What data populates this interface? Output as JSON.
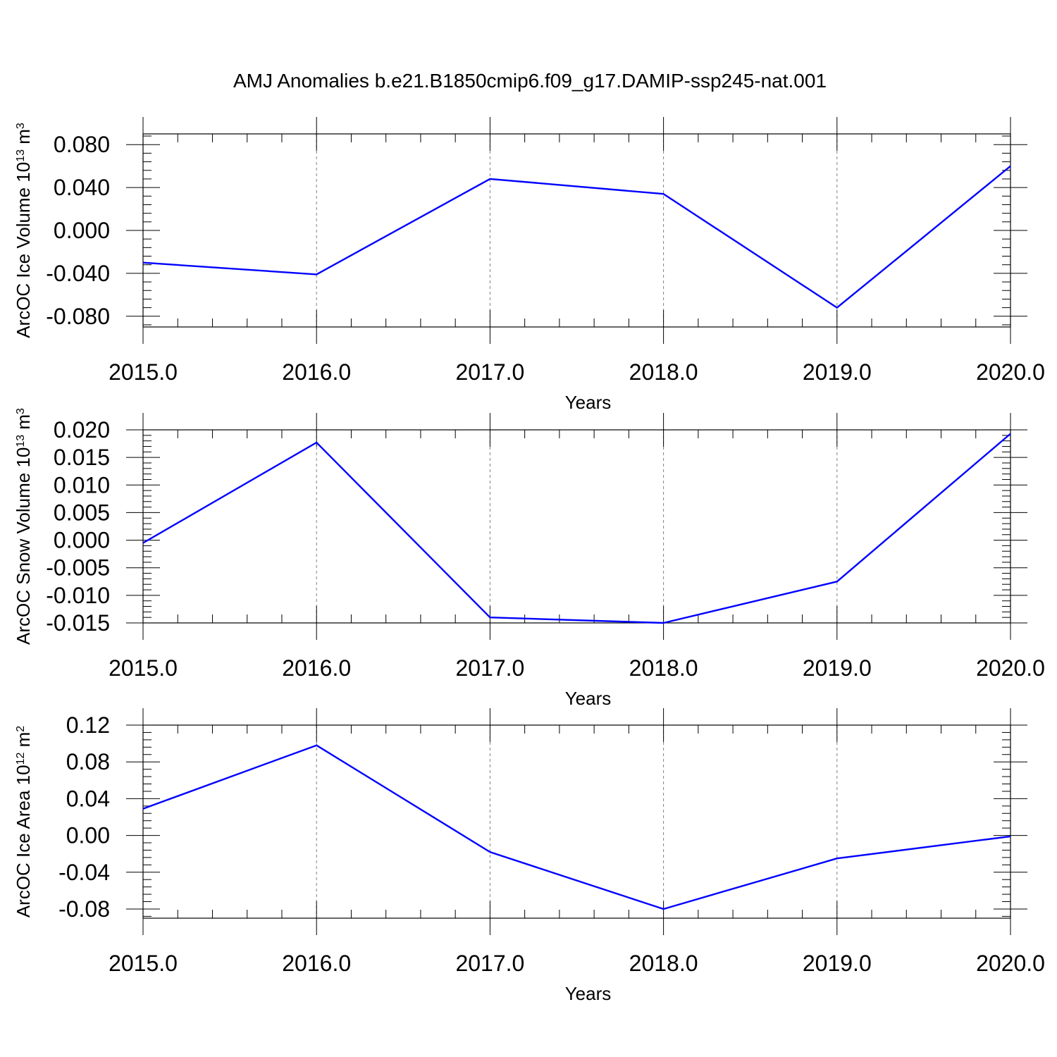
{
  "title": "AMJ Anomalies b.e21.B1850cmip6.f09_g17.DAMIP-ssp245-nat.001",
  "colors": {
    "line": "#0000ff",
    "grid": "#7f7f7f",
    "axis": "#000000"
  },
  "chart_data": [
    {
      "type": "line",
      "ylabel": {
        "text": "ArcOC Ice Volume 10",
        "exp": "13",
        "unit": " m",
        "unit_exp": "3"
      },
      "xlabel": "Years",
      "x": [
        2015,
        2016,
        2017,
        2018,
        2019,
        2020
      ],
      "x_tick_labels": [
        "2015.0",
        "2016.0",
        "2017.0",
        "2018.0",
        "2019.0",
        "2020.0"
      ],
      "xlim": [
        2015,
        2020
      ],
      "ylim": [
        -0.09,
        0.09
      ],
      "y_ticks": [
        0.08,
        0.04,
        0.0,
        -0.04,
        -0.08
      ],
      "y_tick_labels": [
        "0.080",
        "0.040",
        "0.000",
        "-0.040",
        "-0.080"
      ],
      "grid": "vertical dashed",
      "series": [
        {
          "values": [
            -0.03,
            -0.041,
            0.048,
            0.034,
            -0.072,
            0.06
          ]
        }
      ]
    },
    {
      "type": "line",
      "ylabel": {
        "text": "ArcOC Snow Volume 10",
        "exp": "13",
        "unit": " m",
        "unit_exp": "3"
      },
      "xlabel": "Years",
      "x": [
        2015,
        2016,
        2017,
        2018,
        2019,
        2020
      ],
      "x_tick_labels": [
        "2015.0",
        "2016.0",
        "2017.0",
        "2018.0",
        "2019.0",
        "2020.0"
      ],
      "xlim": [
        2015,
        2020
      ],
      "ylim": [
        -0.015,
        0.02
      ],
      "y_ticks": [
        0.02,
        0.015,
        0.01,
        0.005,
        0.0,
        -0.005,
        -0.01,
        -0.015
      ],
      "y_tick_labels": [
        "0.020",
        "0.015",
        "0.010",
        "0.005",
        "0.000",
        "-0.005",
        "-0.010",
        "-0.015"
      ],
      "grid": "vertical dashed",
      "series": [
        {
          "values": [
            -0.0005,
            0.0177,
            -0.014,
            -0.015,
            -0.0075,
            0.0193
          ]
        }
      ]
    },
    {
      "type": "line",
      "ylabel": {
        "text": "ArcOC Ice Area 10",
        "exp": "12",
        "unit": " m",
        "unit_exp": "2"
      },
      "xlabel": "Years",
      "x": [
        2015,
        2016,
        2017,
        2018,
        2019,
        2020
      ],
      "x_tick_labels": [
        "2015.0",
        "2016.0",
        "2017.0",
        "2018.0",
        "2019.0",
        "2020.0"
      ],
      "xlim": [
        2015,
        2020
      ],
      "ylim": [
        -0.09,
        0.12
      ],
      "y_ticks": [
        0.12,
        0.08,
        0.04,
        0.0,
        -0.04,
        -0.08
      ],
      "y_tick_labels": [
        "0.12",
        "0.08",
        "0.04",
        "0.00",
        "-0.04",
        "-0.08"
      ],
      "grid": "vertical dashed",
      "series": [
        {
          "values": [
            0.029,
            0.098,
            -0.018,
            -0.08,
            -0.025,
            -0.001
          ]
        }
      ]
    }
  ]
}
